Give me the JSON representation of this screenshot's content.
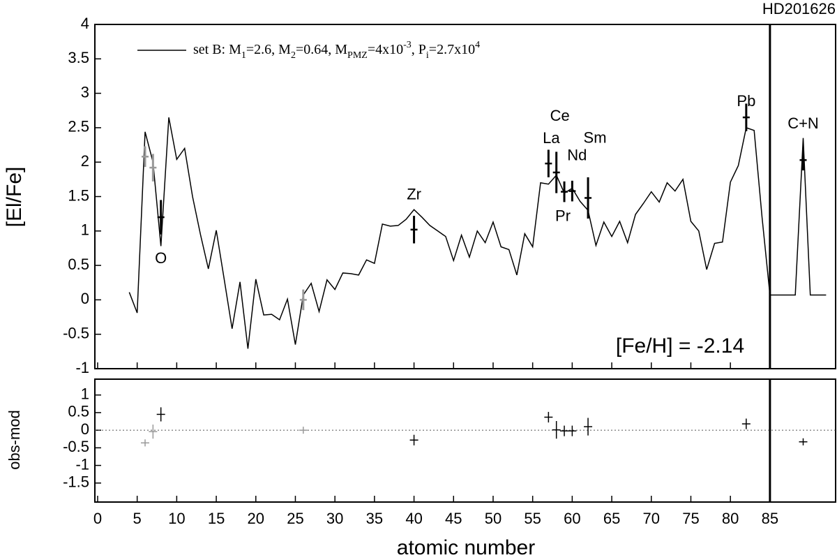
{
  "chart_data": [
    {
      "type": "line",
      "title": "HD201626",
      "ylabel": "[El/Fe]",
      "annotation": "[Fe/H] = -2.14",
      "xlim": [
        -0.35,
        93.3
      ],
      "ylim": [
        -1,
        4
      ],
      "yticks": [
        -1,
        -0.5,
        0,
        0.5,
        1,
        1.5,
        2,
        2.5,
        3,
        3.5,
        4
      ],
      "panel_split": 85,
      "series": [
        {
          "name": [
            {
              "text": "set B: M"
            },
            {
              "text": "1",
              "shift": "sub"
            },
            {
              "text": "=2.6, M"
            },
            {
              "text": "2",
              "shift": "sub"
            },
            {
              "text": "=0.64, M"
            },
            {
              "text": "PMZ",
              "shift": "sub"
            },
            {
              "text": "=4x10"
            },
            {
              "text": "-3",
              "shift": "super"
            },
            {
              "text": ", P"
            },
            {
              "text": "i",
              "shift": "sub"
            },
            {
              "text": "=2.7x10"
            },
            {
              "text": "4",
              "shift": "super"
            }
          ],
          "color": "#000000",
          "x": [
            4,
            5,
            6,
            7,
            8,
            9,
            10,
            11,
            12,
            13,
            14,
            15,
            16,
            17,
            18,
            19,
            20,
            21,
            22,
            23,
            24,
            25,
            26,
            27,
            28,
            29,
            30,
            31,
            32,
            33,
            34,
            35,
            36,
            37,
            38,
            39,
            40,
            41,
            42,
            43,
            44,
            45,
            46,
            47,
            48,
            49,
            50,
            51,
            52,
            53,
            54,
            55,
            56,
            57,
            58,
            59,
            60,
            61,
            62,
            63,
            64,
            65,
            66,
            67,
            68,
            69,
            70,
            71,
            72,
            73,
            74,
            75,
            76,
            77,
            78,
            79,
            80,
            81,
            82,
            83,
            84,
            85,
            88.2,
            89.2,
            90.1,
            92.1
          ],
          "values": [
            0.11,
            -0.19,
            2.44,
            2.0,
            0.78,
            2.65,
            2.04,
            2.2,
            1.5,
            0.95,
            0.45,
            1.01,
            0.3,
            -0.42,
            0.26,
            -0.71,
            0.3,
            -0.22,
            -0.21,
            -0.29,
            0.01,
            -0.65,
            0.07,
            0.24,
            -0.17,
            0.29,
            0.15,
            0.39,
            0.38,
            0.36,
            0.58,
            0.53,
            1.1,
            1.07,
            1.08,
            1.17,
            1.31,
            1.2,
            1.08,
            1.0,
            0.92,
            0.57,
            0.94,
            0.62,
            1.0,
            0.83,
            1.13,
            0.77,
            0.73,
            0.36,
            0.96,
            0.77,
            1.7,
            1.68,
            1.81,
            1.55,
            1.62,
            1.43,
            1.3,
            0.79,
            1.13,
            0.92,
            1.14,
            0.83,
            1.24,
            1.4,
            1.57,
            1.42,
            1.7,
            1.58,
            1.75,
            1.14,
            1.0,
            0.44,
            0.82,
            0.84,
            1.71,
            1.95,
            2.5,
            2.46,
            1.2,
            0.07,
            0.07,
            2.35,
            0.07,
            0.07
          ]
        },
        {
          "color": "#000000",
          "x": [
            8,
            40,
            57,
            58,
            59,
            60,
            62,
            82,
            89.2
          ],
          "values": [
            1.2,
            1.02,
            1.98,
            1.85,
            1.57,
            1.58,
            1.48,
            2.65,
            2.03
          ],
          "errors": [
            0.25,
            0.2,
            0.2,
            0.3,
            0.15,
            0.15,
            0.3,
            0.2,
            0.15
          ],
          "labels": [
            "O",
            "Zr",
            "La",
            "Ce",
            "Pr",
            "Nd",
            "Sm",
            "Pb",
            "C+N"
          ]
        },
        {
          "color": "#999999",
          "x": [
            6,
            7,
            26
          ],
          "values": [
            2.08,
            1.92,
            0.0
          ],
          "errors": [
            0.15,
            0.2,
            0.15
          ]
        }
      ]
    },
    {
      "type": "scatter",
      "xlabel": "atomic number",
      "ylabel": "obs-mod",
      "xlim": [
        -0.35,
        93.3
      ],
      "ylim": [
        -2.04,
        1.45
      ],
      "xticks": [
        0,
        5,
        10,
        15,
        20,
        25,
        30,
        35,
        40,
        45,
        50,
        55,
        60,
        65,
        70,
        75,
        80,
        85
      ],
      "yticks": [
        -1.5,
        -1,
        -0.5,
        0,
        0.5,
        1
      ],
      "reference_line": 0,
      "panel_split": 85,
      "series": [
        {
          "color": "#000000",
          "x": [
            8,
            40,
            57,
            58,
            59,
            60,
            62,
            82,
            89.2
          ],
          "values": [
            0.45,
            -0.28,
            0.37,
            0.01,
            -0.02,
            -0.02,
            0.1,
            0.18,
            -0.33
          ],
          "errors": [
            0.2,
            0.15,
            0.15,
            0.25,
            0.15,
            0.15,
            0.25,
            0.15,
            0.1
          ]
        },
        {
          "color": "#999999",
          "x": [
            6,
            7,
            26
          ],
          "values": [
            -0.36,
            -0.04,
            0.0
          ],
          "errors": [
            0.1,
            0.2,
            0.1
          ]
        }
      ]
    }
  ]
}
